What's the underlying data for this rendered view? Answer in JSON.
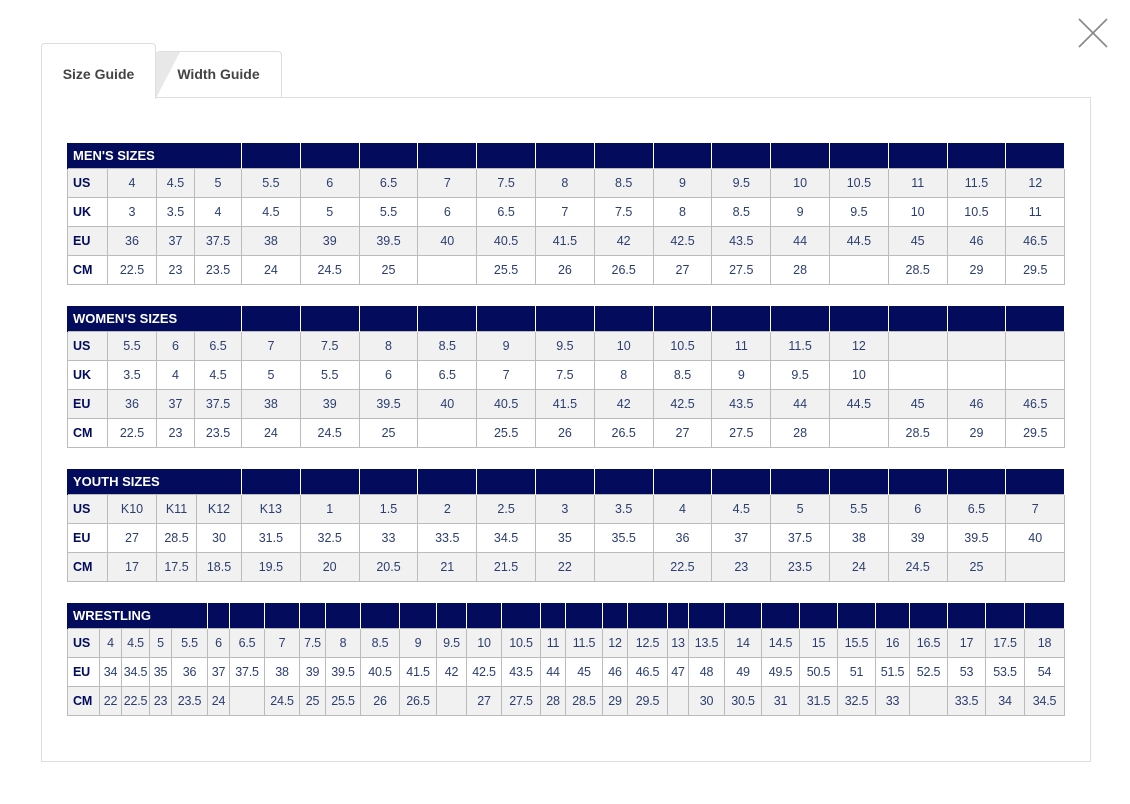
{
  "tabs": [
    {
      "label": "Size Guide",
      "active": true
    },
    {
      "label": "Width Guide",
      "active": false
    }
  ],
  "colors": {
    "header_bg": "#020b5c",
    "row_alt": "#f1f1f1",
    "text": "#2c3e70"
  },
  "tables": [
    {
      "title": "MEN'S SIZES",
      "rows": [
        {
          "label": "US",
          "values": [
            "4",
            "4.5",
            "5",
            "5.5",
            "6",
            "6.5",
            "7",
            "7.5",
            "8",
            "8.5",
            "9",
            "9.5",
            "10",
            "10.5",
            "11",
            "11.5",
            "12"
          ]
        },
        {
          "label": "UK",
          "values": [
            "3",
            "3.5",
            "4",
            "4.5",
            "5",
            "5.5",
            "6",
            "6.5",
            "7",
            "7.5",
            "8",
            "8.5",
            "9",
            "9.5",
            "10",
            "10.5",
            "11"
          ]
        },
        {
          "label": "EU",
          "values": [
            "36",
            "37",
            "37.5",
            "38",
            "39",
            "39.5",
            "40",
            "40.5",
            "41.5",
            "42",
            "42.5",
            "43.5",
            "44",
            "44.5",
            "45",
            "46",
            "46.5"
          ]
        },
        {
          "label": "CM",
          "values": [
            "22.5",
            "23",
            "23.5",
            "24",
            "24.5",
            "25",
            "",
            "25.5",
            "26",
            "26.5",
            "27",
            "27.5",
            "28",
            "",
            "28.5",
            "29",
            "29.5"
          ]
        }
      ]
    },
    {
      "title": "WOMEN'S SIZES",
      "rows": [
        {
          "label": "US",
          "values": [
            "5.5",
            "6",
            "6.5",
            "7",
            "7.5",
            "8",
            "8.5",
            "9",
            "9.5",
            "10",
            "10.5",
            "11",
            "11.5",
            "12",
            "",
            "",
            ""
          ]
        },
        {
          "label": "UK",
          "values": [
            "3.5",
            "4",
            "4.5",
            "5",
            "5.5",
            "6",
            "6.5",
            "7",
            "7.5",
            "8",
            "8.5",
            "9",
            "9.5",
            "10",
            "",
            "",
            ""
          ]
        },
        {
          "label": "EU",
          "values": [
            "36",
            "37",
            "37.5",
            "38",
            "39",
            "39.5",
            "40",
            "40.5",
            "41.5",
            "42",
            "42.5",
            "43.5",
            "44",
            "44.5",
            "45",
            "46",
            "46.5"
          ]
        },
        {
          "label": "CM",
          "values": [
            "22.5",
            "23",
            "23.5",
            "24",
            "24.5",
            "25",
            "",
            "25.5",
            "26",
            "26.5",
            "27",
            "27.5",
            "28",
            "",
            "28.5",
            "29",
            "29.5"
          ]
        }
      ]
    },
    {
      "title": "YOUTH SIZES",
      "rows": [
        {
          "label": "US",
          "values": [
            "K10",
            "K11",
            "K12",
            "K13",
            "1",
            "1.5",
            "2",
            "2.5",
            "3",
            "3.5",
            "4",
            "4.5",
            "5",
            "5.5",
            "6",
            "6.5",
            "7"
          ]
        },
        {
          "label": "EU",
          "values": [
            "27",
            "28.5",
            "30",
            "31.5",
            "32.5",
            "33",
            "33.5",
            "34.5",
            "35",
            "35.5",
            "36",
            "37",
            "37.5",
            "38",
            "39",
            "39.5",
            "40"
          ]
        },
        {
          "label": "CM",
          "values": [
            "17",
            "17.5",
            "18.5",
            "19.5",
            "20",
            "20.5",
            "21",
            "21.5",
            "22",
            "",
            "22.5",
            "23",
            "23.5",
            "24",
            "24.5",
            "25",
            ""
          ]
        }
      ]
    },
    {
      "title": "WRESTLING",
      "rows": [
        {
          "label": "US",
          "values": [
            "4",
            "4.5",
            "5",
            "5.5",
            "6",
            "6.5",
            "7",
            "7.5",
            "8",
            "8.5",
            "9",
            "9.5",
            "10",
            "10.5",
            "11",
            "11.5",
            "12",
            "12.5",
            "13",
            "13.5",
            "14",
            "14.5",
            "15",
            "15.5",
            "16",
            "16.5",
            "17",
            "17.5",
            "18"
          ]
        },
        {
          "label": "EU",
          "values": [
            "34",
            "34.5",
            "35",
            "36",
            "37",
            "37.5",
            "38",
            "39",
            "39.5",
            "40.5",
            "41.5",
            "42",
            "42.5",
            "43.5",
            "44",
            "45",
            "46",
            "46.5",
            "47",
            "48",
            "49",
            "49.5",
            "50.5",
            "51",
            "51.5",
            "52.5",
            "53",
            "53.5",
            "54"
          ]
        },
        {
          "label": "CM",
          "values": [
            "22",
            "22.5",
            "23",
            "23.5",
            "24",
            "",
            "24.5",
            "25",
            "25.5",
            "26",
            "26.5",
            "",
            "27",
            "27.5",
            "28",
            "28.5",
            "29",
            "29.5",
            "",
            "30",
            "30.5",
            "31",
            "31.5",
            "32.5",
            "33",
            "",
            "33.5",
            "34",
            "34.5"
          ]
        }
      ]
    }
  ]
}
